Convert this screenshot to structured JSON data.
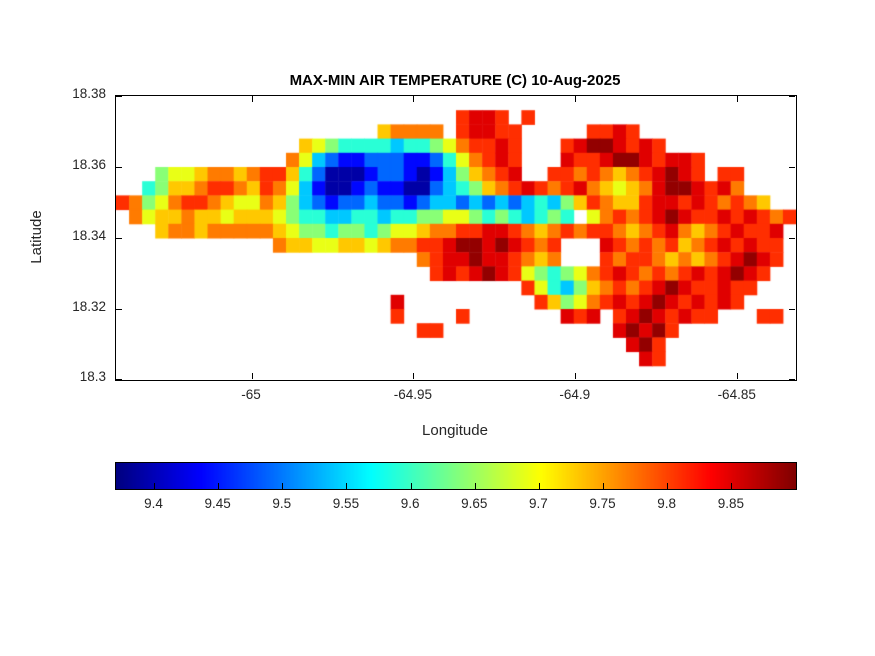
{
  "figure": {
    "background": "#ffffff"
  },
  "chart_data": {
    "type": "heatmap",
    "title": "MAX-MIN AIR TEMPERATURE (C) 10-Aug-2025",
    "xlabel": "Longitude",
    "ylabel": "Latitude",
    "x_range": [
      -65.042,
      -64.832
    ],
    "y_range": [
      18.3,
      18.38
    ],
    "x_ticks": [
      -65,
      -64.95,
      -64.9,
      -64.85
    ],
    "x_tick_labels": [
      "-65",
      "-64.95",
      "-64.9",
      "-64.85"
    ],
    "y_ticks": [
      18.3,
      18.32,
      18.34,
      18.36,
      18.38
    ],
    "y_tick_labels": [
      "18.3",
      "18.32",
      "18.34",
      "18.36",
      "18.38"
    ],
    "colormap": "jet",
    "value_range": [
      9.37,
      9.9
    ],
    "colorbar_orientation": "horizontal",
    "colorbar_ticks": [
      9.4,
      9.45,
      9.5,
      9.55,
      9.6,
      9.65,
      9.7,
      9.75,
      9.8,
      9.85
    ],
    "colorbar_tick_labels": [
      "9.4",
      "9.45",
      "9.5",
      "9.55",
      "9.6",
      "9.65",
      "9.7",
      "9.75",
      "9.8",
      "9.85"
    ],
    "grid": {
      "note": "coarse raster of the island temperature field; chars map to temperature values via levels, '.' = no data (sea/white)",
      "cols": 52,
      "levels": {
        "0": 9.39,
        "1": 9.44,
        "2": 9.49,
        "3": 9.54,
        "4": 9.59,
        "5": 9.64,
        "6": 9.69,
        "7": 9.73,
        "8": 9.77,
        "9": 9.81,
        "a": 9.85,
        "b": 9.89
      },
      "rows": [
        "....................................................",
        "..........................9aa9.9....................",
        "....................78888.9aa99.....99a9............",
        "..............765444434456899a9...9abba9a9..........",
        ".............8632112221124689a9...a99abba9aa9.......",
        "...566788789974200012210135789a..99898789aba9.99....",
        "..45778998798631001211002345789a989a87678abba9a8....",
        "98568998766875321223221233232323435798779aa9a98987..",
        ".8677877677765443344344556654543454​68989aba99a9a989.",
        "...7887888887655455456678899aa987898998789a8789a99a.",
        "............8776677678899abbaba989...a98989789a9a99.",
        ".......................89aabaa9878...9899878789aba9.",
        "........................9a9aba96545689a98989a9aba9..",
        "...............................9643578989aba99a99...",
        ".....................a..........975689a9aba9a9a9....",
        ".....................9....9.......a9a.9aba9a99...99.",
        ".......................99.............abab9.........",
        ".......................................ab9..........",
        "........................................a9..........",
        "...................................................."
      ]
    }
  }
}
